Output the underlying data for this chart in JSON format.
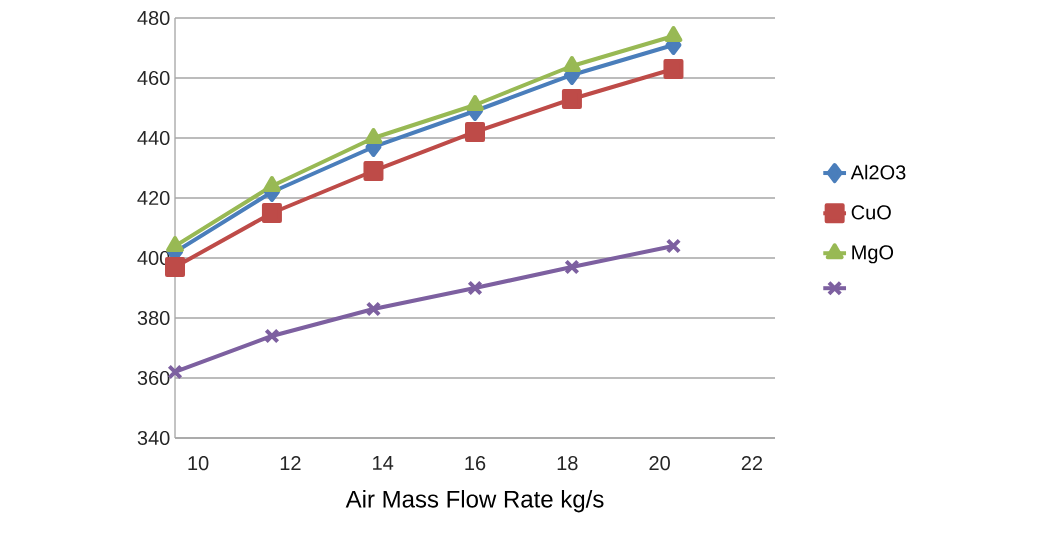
{
  "chart_data": {
    "type": "line",
    "xlabel": "Air Mass Flow Rate kg/s",
    "xlim": [
      9.5,
      22.5
    ],
    "xticks": [
      10,
      12,
      14,
      16,
      18,
      20,
      22
    ],
    "ylim": [
      340,
      480
    ],
    "yticks": [
      340,
      360,
      380,
      400,
      420,
      440,
      460,
      480
    ],
    "grid": "y",
    "legend": "right",
    "series": [
      {
        "name": "Al2O3",
        "color": "#4a7ebb",
        "marker": "diamond",
        "x": [
          9.5,
          11.6,
          13.8,
          16,
          18.1,
          20.3
        ],
        "values": [
          402,
          422,
          437,
          449,
          461,
          471
        ]
      },
      {
        "name": "CuO",
        "color": "#be4b48",
        "marker": "square",
        "x": [
          9.5,
          11.6,
          13.8,
          16,
          18.1,
          20.3
        ],
        "values": [
          397,
          415,
          429,
          442,
          453,
          463
        ]
      },
      {
        "name": "MgO",
        "color": "#98b954",
        "marker": "triangle",
        "x": [
          9.5,
          11.6,
          13.8,
          16,
          18.1,
          20.3
        ],
        "values": [
          404,
          424,
          440,
          451,
          464,
          474
        ]
      },
      {
        "color": "#7d60a0",
        "marker": "cross",
        "x": [
          9.5,
          11.6,
          13.8,
          16,
          18.1,
          20.3
        ],
        "values": [
          362,
          374,
          383,
          390,
          397,
          404
        ]
      }
    ]
  }
}
